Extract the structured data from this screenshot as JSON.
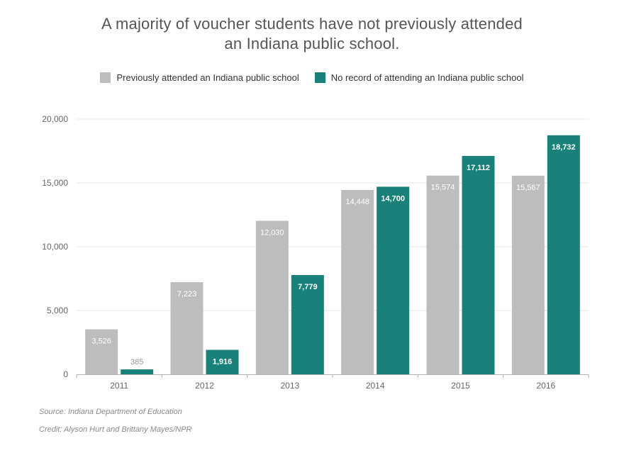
{
  "title_lines": [
    "A majority of voucher students have not previously attended",
    "an Indiana public school."
  ],
  "legend": [
    {
      "label": "Previously attended an Indiana public school",
      "color": "#bdbdbd"
    },
    {
      "label": "No record of attending an Indiana public school",
      "color": "#1a807a"
    }
  ],
  "chart_data": {
    "type": "bar",
    "title": "A majority of voucher students have not previously attended an Indiana public school.",
    "categories": [
      "2011",
      "2012",
      "2013",
      "2014",
      "2015",
      "2016"
    ],
    "series": [
      {
        "name": "Previously attended an Indiana public school",
        "color": "#bdbdbd",
        "values": [
          3526,
          7223,
          12030,
          14448,
          15574,
          15567
        ],
        "labels": [
          "3,526",
          "7,223",
          "12,030",
          "14,448",
          "15,574",
          "15,567"
        ]
      },
      {
        "name": "No record of attending an Indiana public school",
        "color": "#1a807a",
        "values": [
          385,
          1916,
          7779,
          14700,
          17112,
          18732
        ],
        "labels": [
          "385",
          "1,916",
          "7,779",
          "14,700",
          "17,112",
          "18,732"
        ]
      }
    ],
    "yticks": [
      0,
      5000,
      10000,
      15000,
      20000
    ],
    "ytick_labels": [
      "0",
      "5,000",
      "10,000",
      "15,000",
      "20,000"
    ],
    "ylim": [
      0,
      20000
    ],
    "xlabel": "",
    "ylabel": "",
    "grid": true,
    "legend_position": "top"
  },
  "source": "Source: Indiana Department of Education",
  "credit": "Credit: Alyson Hurt and Brittany Mayes/NPR"
}
